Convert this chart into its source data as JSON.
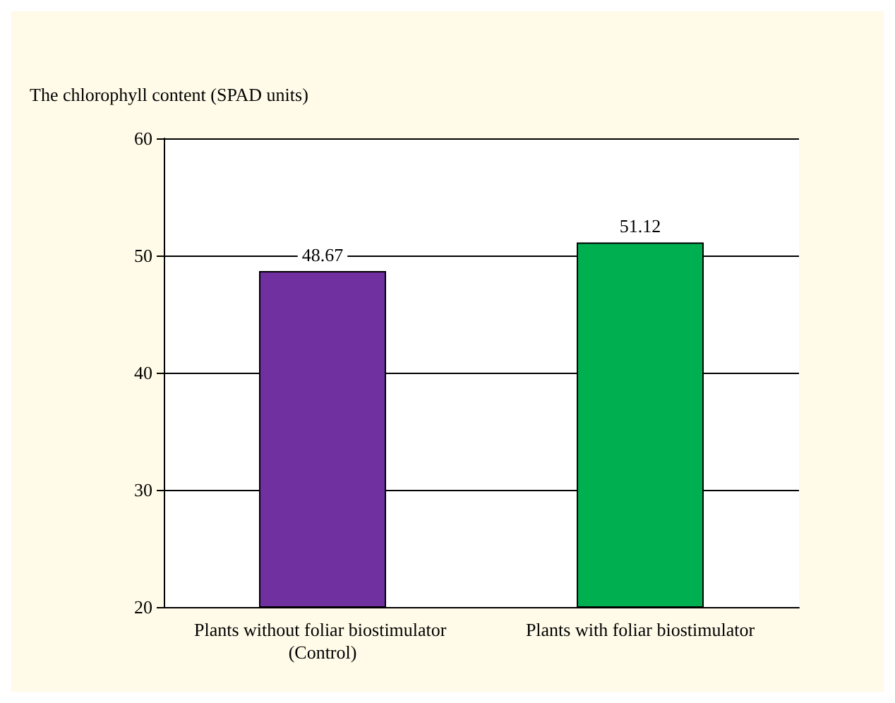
{
  "chart_data": {
    "type": "bar",
    "ylabel": "The chlorophyll content (SPAD units)",
    "categories": [
      "Plants without foliar biostimulator (Control)",
      "Plants with foliar biostimulator"
    ],
    "values": [
      48.67,
      51.12
    ],
    "colors": [
      "#7030a0",
      "#00b050"
    ],
    "ylim": [
      20,
      60
    ],
    "yticks": [
      20,
      30,
      40,
      50,
      60
    ],
    "grid": "y",
    "data_labels": true
  }
}
